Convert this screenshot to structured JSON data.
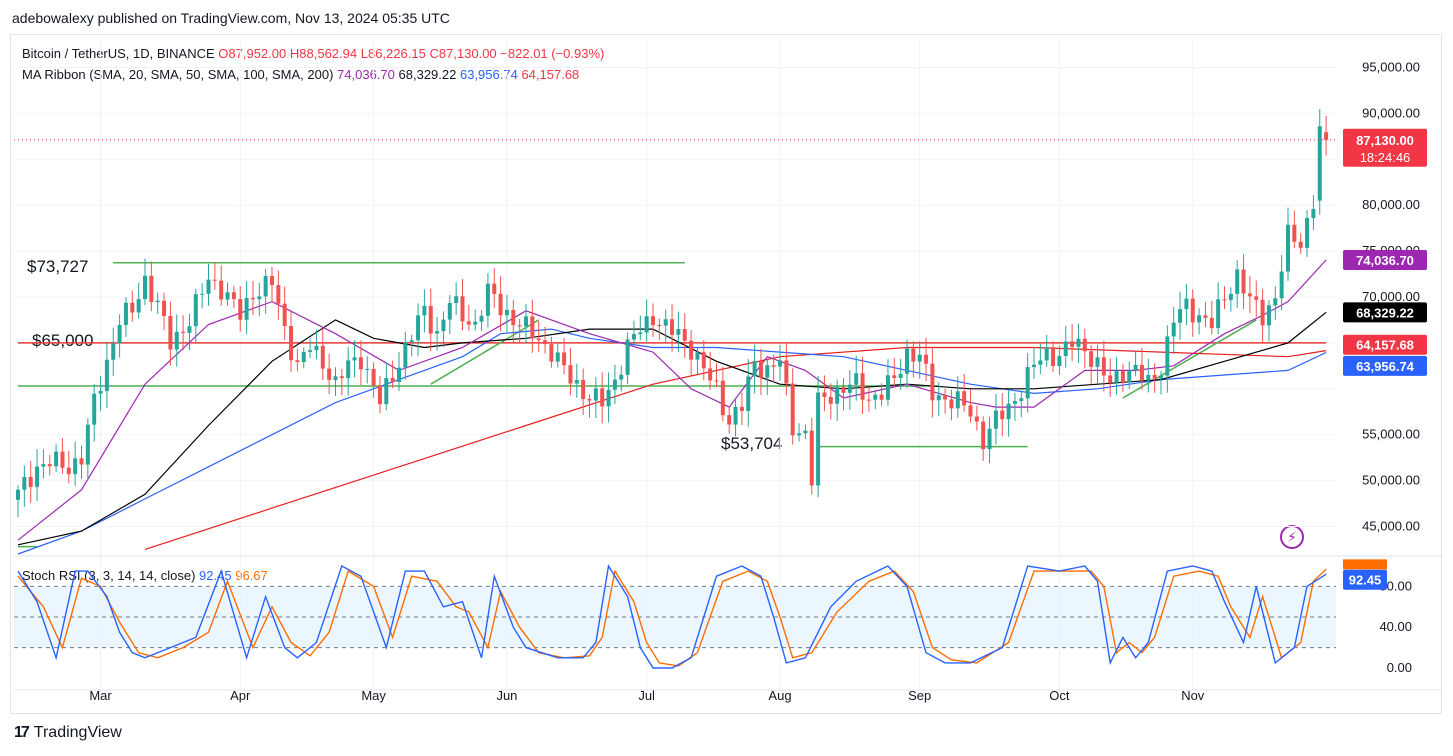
{
  "credit": "adebowalexy published on TradingView.com, Nov 13, 2024 05:35 UTC",
  "legend": {
    "symbol": "Bitcoin / TetherUS, 1D, BINANCE",
    "o": "O87,952.00",
    "h": "H88,562.94",
    "l": "L86,226.15",
    "c": "C87,130.00",
    "chg": "−822.01 (−0.93%)",
    "ma_label": "MA Ribbon (SMA, 20, SMA, 50, SMA, 100, SMA, 200)",
    "ma20": "74,036.70",
    "ma50": "68,329.22",
    "ma100": "63,956.74",
    "ma200": "64,157.68",
    "stoch_label": "Stoch RSI (3, 3, 14, 14, close)",
    "stoch_k": "92.45",
    "stoch_d": "96.67"
  },
  "annotations": {
    "a1": "$73,727",
    "a2": "$65,000",
    "a3": "$53,704"
  },
  "footer": {
    "brand": "TradingView",
    "logo": "17"
  },
  "colors": {
    "up": "#26a69a",
    "down": "#ef5350",
    "ma20": "#9c27b0",
    "ma50": "#000000",
    "ma100": "#2962ff",
    "ma200": "#e91e1e",
    "support": "#4caf50",
    "resistance": "#e53935",
    "stochK": "#2962ff",
    "stochD": "#ff6d00"
  },
  "chart_data": {
    "type": "candlestick",
    "x_ticks": [
      "Mar",
      "Apr",
      "May",
      "Jun",
      "Jul",
      "Aug",
      "Sep",
      "Oct",
      "Nov"
    ],
    "y_ticks": [
      "95,000.00",
      "90,000.00",
      "80,000.00",
      "75,000.00",
      "70,000.00",
      "55,000.00",
      "50,000.00",
      "45,000.00"
    ],
    "ylim": [
      42000,
      98000
    ],
    "last_price": "87,130.00",
    "countdown": "18:24:46",
    "price_markers": [
      {
        "value": "74,036.70",
        "color": "#9c27b0"
      },
      {
        "value": "68,329.22",
        "color": "#000000"
      },
      {
        "value": "64,157.68",
        "color": "#f23645"
      },
      {
        "value": "63,956.74",
        "color": "#2962ff"
      }
    ],
    "levels": [
      {
        "name": "resistance",
        "value": 73727
      },
      {
        "name": "support-red",
        "value": 65000
      },
      {
        "name": "support-green",
        "value": 60300
      },
      {
        "name": "low",
        "value": 53704
      }
    ],
    "closes": [
      [
        0,
        48500
      ],
      [
        3,
        51500
      ],
      [
        5,
        52000
      ],
      [
        8,
        51500
      ],
      [
        10,
        52500
      ],
      [
        12,
        58500
      ],
      [
        14,
        63000
      ],
      [
        16,
        67500
      ],
      [
        18,
        68500
      ],
      [
        20,
        72000
      ],
      [
        22,
        69000
      ],
      [
        24,
        65000
      ],
      [
        27,
        67500
      ],
      [
        30,
        72000
      ],
      [
        32,
        71000
      ],
      [
        35,
        68000
      ],
      [
        37,
        70500
      ],
      [
        40,
        71500
      ],
      [
        42,
        66500
      ],
      [
        44,
        62500
      ],
      [
        46,
        64500
      ],
      [
        48,
        63000
      ],
      [
        50,
        60500
      ],
      [
        52,
        62500
      ],
      [
        54,
        63500
      ],
      [
        57,
        58500
      ],
      [
        59,
        61500
      ],
      [
        61,
        64500
      ],
      [
        64,
        68500
      ],
      [
        66,
        66000
      ],
      [
        68,
        69500
      ],
      [
        70,
        68000
      ],
      [
        72,
        67000
      ],
      [
        74,
        70500
      ],
      [
        76,
        69000
      ],
      [
        78,
        67500
      ],
      [
        80,
        66500
      ],
      [
        82,
        65500
      ],
      [
        84,
        64000
      ],
      [
        86,
        62000
      ],
      [
        88,
        60500
      ],
      [
        90,
        59000
      ],
      [
        92,
        58500
      ],
      [
        94,
        61000
      ],
      [
        96,
        64500
      ],
      [
        98,
        66500
      ],
      [
        100,
        68000
      ],
      [
        102,
        66500
      ],
      [
        104,
        66000
      ],
      [
        106,
        64500
      ],
      [
        108,
        62000
      ],
      [
        110,
        60000
      ],
      [
        112,
        56500
      ],
      [
        114,
        58000
      ],
      [
        116,
        63000
      ],
      [
        118,
        62000
      ],
      [
        120,
        63000
      ],
      [
        122,
        56000
      ],
      [
        124,
        55000
      ],
      [
        125,
        50000
      ],
      [
        126,
        58500
      ],
      [
        128,
        59500
      ],
      [
        130,
        60000
      ],
      [
        132,
        60500
      ],
      [
        134,
        59000
      ],
      [
        136,
        59500
      ],
      [
        138,
        61000
      ],
      [
        140,
        64000
      ],
      [
        142,
        63500
      ],
      [
        144,
        59500
      ],
      [
        146,
        59000
      ],
      [
        148,
        58500
      ],
      [
        150,
        57500
      ],
      [
        152,
        54500
      ],
      [
        154,
        56500
      ],
      [
        156,
        58000
      ],
      [
        158,
        60000
      ],
      [
        160,
        62500
      ],
      [
        162,
        64000
      ],
      [
        164,
        63500
      ],
      [
        166,
        65000
      ],
      [
        168,
        64500
      ],
      [
        170,
        62500
      ],
      [
        172,
        60500
      ],
      [
        174,
        62000
      ],
      [
        176,
        62000
      ],
      [
        178,
        60500
      ],
      [
        180,
        62500
      ],
      [
        182,
        67500
      ],
      [
        184,
        69000
      ],
      [
        186,
        68000
      ],
      [
        188,
        67000
      ],
      [
        190,
        70000
      ],
      [
        192,
        72500
      ],
      [
        194,
        69500
      ],
      [
        196,
        68000
      ],
      [
        198,
        70000
      ],
      [
        200,
        76500
      ],
      [
        202,
        76000
      ],
      [
        204,
        80500
      ],
      [
        205,
        88600
      ],
      [
        206,
        87130
      ]
    ],
    "ma20": [
      [
        0,
        43500
      ],
      [
        10,
        49000
      ],
      [
        20,
        60500
      ],
      [
        30,
        67000
      ],
      [
        40,
        69500
      ],
      [
        50,
        66000
      ],
      [
        60,
        62000
      ],
      [
        70,
        64500
      ],
      [
        80,
        68500
      ],
      [
        90,
        66000
      ],
      [
        100,
        64000
      ],
      [
        106,
        60000
      ],
      [
        112,
        58000
      ],
      [
        118,
        63500
      ],
      [
        124,
        62000
      ],
      [
        130,
        59000
      ],
      [
        140,
        60500
      ],
      [
        150,
        58500
      ],
      [
        154,
        58000
      ],
      [
        160,
        58000
      ],
      [
        168,
        62000
      ],
      [
        176,
        62000
      ],
      [
        182,
        62500
      ],
      [
        190,
        66000
      ],
      [
        196,
        68000
      ],
      [
        200,
        69500
      ],
      [
        206,
        74036
      ]
    ],
    "ma50": [
      [
        0,
        43000
      ],
      [
        10,
        44500
      ],
      [
        20,
        48500
      ],
      [
        30,
        56000
      ],
      [
        40,
        63000
      ],
      [
        50,
        67500
      ],
      [
        56,
        65500
      ],
      [
        64,
        64500
      ],
      [
        70,
        65000
      ],
      [
        80,
        65500
      ],
      [
        90,
        66500
      ],
      [
        100,
        66500
      ],
      [
        110,
        63000
      ],
      [
        120,
        60500
      ],
      [
        130,
        60000
      ],
      [
        140,
        60500
      ],
      [
        150,
        60000
      ],
      [
        160,
        60000
      ],
      [
        170,
        60500
      ],
      [
        180,
        61000
      ],
      [
        190,
        63000
      ],
      [
        200,
        65000
      ],
      [
        206,
        68329
      ]
    ],
    "ma100": [
      [
        0,
        42000
      ],
      [
        10,
        44500
      ],
      [
        20,
        48000
      ],
      [
        30,
        51500
      ],
      [
        40,
        55000
      ],
      [
        50,
        58500
      ],
      [
        60,
        61000
      ],
      [
        70,
        63500
      ],
      [
        76,
        66000
      ],
      [
        84,
        66500
      ],
      [
        90,
        65500
      ],
      [
        100,
        64500
      ],
      [
        110,
        64500
      ],
      [
        120,
        64000
      ],
      [
        130,
        63500
      ],
      [
        140,
        62000
      ],
      [
        150,
        60500
      ],
      [
        160,
        59500
      ],
      [
        170,
        60000
      ],
      [
        180,
        61000
      ],
      [
        190,
        61500
      ],
      [
        200,
        62000
      ],
      [
        206,
        63956
      ]
    ],
    "ma200": [
      [
        20,
        42500
      ],
      [
        40,
        47000
      ],
      [
        60,
        51500
      ],
      [
        80,
        56000
      ],
      [
        100,
        60500
      ],
      [
        120,
        63500
      ],
      [
        140,
        64500
      ],
      [
        160,
        64500
      ],
      [
        180,
        64000
      ],
      [
        200,
        63500
      ],
      [
        206,
        64157
      ]
    ],
    "stoch": {
      "ylim": [
        0,
        100
      ],
      "y_ticks": [
        "80.00",
        "40.00",
        "0.00"
      ],
      "k_last": "92.45",
      "d_last": "96.67",
      "k": [
        [
          0,
          95
        ],
        [
          3,
          65
        ],
        [
          6,
          10
        ],
        [
          9,
          95
        ],
        [
          11,
          95
        ],
        [
          14,
          70
        ],
        [
          16,
          35
        ],
        [
          18,
          15
        ],
        [
          20,
          10
        ],
        [
          24,
          20
        ],
        [
          28,
          30
        ],
        [
          32,
          95
        ],
        [
          36,
          10
        ],
        [
          39,
          70
        ],
        [
          42,
          20
        ],
        [
          44,
          10
        ],
        [
          47,
          25
        ],
        [
          51,
          100
        ],
        [
          54,
          90
        ],
        [
          58,
          20
        ],
        [
          61,
          95
        ],
        [
          64,
          95
        ],
        [
          67,
          60
        ],
        [
          70,
          65
        ],
        [
          73,
          10
        ],
        [
          75,
          90
        ],
        [
          78,
          40
        ],
        [
          80,
          20
        ],
        [
          85,
          10
        ],
        [
          89,
          10
        ],
        [
          91,
          25
        ],
        [
          93,
          100
        ],
        [
          96,
          70
        ],
        [
          98,
          20
        ],
        [
          100,
          0
        ],
        [
          103,
          0
        ],
        [
          106,
          10
        ],
        [
          110,
          90
        ],
        [
          114,
          100
        ],
        [
          117,
          90
        ],
        [
          119,
          50
        ],
        [
          121,
          5
        ],
        [
          124,
          10
        ],
        [
          128,
          60
        ],
        [
          132,
          85
        ],
        [
          137,
          100
        ],
        [
          140,
          80
        ],
        [
          143,
          15
        ],
        [
          146,
          5
        ],
        [
          150,
          5
        ],
        [
          155,
          20
        ],
        [
          159,
          100
        ],
        [
          164,
          95
        ],
        [
          168,
          100
        ],
        [
          170,
          85
        ],
        [
          172,
          5
        ],
        [
          174,
          30
        ],
        [
          176,
          10
        ],
        [
          178,
          25
        ],
        [
          181,
          95
        ],
        [
          185,
          100
        ],
        [
          188,
          95
        ],
        [
          190,
          65
        ],
        [
          193,
          25
        ],
        [
          195,
          80
        ],
        [
          198,
          5
        ],
        [
          201,
          20
        ],
        [
          203,
          80
        ],
        [
          206,
          92
        ]
      ],
      "d": [
        [
          0,
          90
        ],
        [
          4,
          60
        ],
        [
          7,
          20
        ],
        [
          10,
          88
        ],
        [
          13,
          80
        ],
        [
          16,
          45
        ],
        [
          19,
          15
        ],
        [
          22,
          10
        ],
        [
          26,
          20
        ],
        [
          30,
          35
        ],
        [
          33,
          85
        ],
        [
          37,
          20
        ],
        [
          40,
          60
        ],
        [
          43,
          25
        ],
        [
          46,
          12
        ],
        [
          49,
          35
        ],
        [
          52,
          95
        ],
        [
          56,
          80
        ],
        [
          59,
          30
        ],
        [
          62,
          90
        ],
        [
          66,
          85
        ],
        [
          69,
          60
        ],
        [
          71,
          55
        ],
        [
          74,
          20
        ],
        [
          76,
          75
        ],
        [
          79,
          40
        ],
        [
          82,
          15
        ],
        [
          86,
          10
        ],
        [
          90,
          12
        ],
        [
          92,
          30
        ],
        [
          94,
          95
        ],
        [
          97,
          65
        ],
        [
          99,
          25
        ],
        [
          101,
          5
        ],
        [
          104,
          2
        ],
        [
          107,
          15
        ],
        [
          111,
          85
        ],
        [
          115,
          95
        ],
        [
          118,
          85
        ],
        [
          120,
          50
        ],
        [
          122,
          10
        ],
        [
          125,
          15
        ],
        [
          129,
          55
        ],
        [
          134,
          85
        ],
        [
          138,
          95
        ],
        [
          141,
          75
        ],
        [
          144,
          20
        ],
        [
          147,
          8
        ],
        [
          151,
          5
        ],
        [
          156,
          25
        ],
        [
          160,
          95
        ],
        [
          165,
          95
        ],
        [
          169,
          95
        ],
        [
          171,
          80
        ],
        [
          173,
          15
        ],
        [
          175,
          25
        ],
        [
          177,
          15
        ],
        [
          179,
          30
        ],
        [
          182,
          90
        ],
        [
          186,
          95
        ],
        [
          189,
          90
        ],
        [
          191,
          60
        ],
        [
          194,
          30
        ],
        [
          196,
          70
        ],
        [
          199,
          10
        ],
        [
          202,
          25
        ],
        [
          204,
          85
        ],
        [
          206,
          97
        ]
      ]
    }
  }
}
